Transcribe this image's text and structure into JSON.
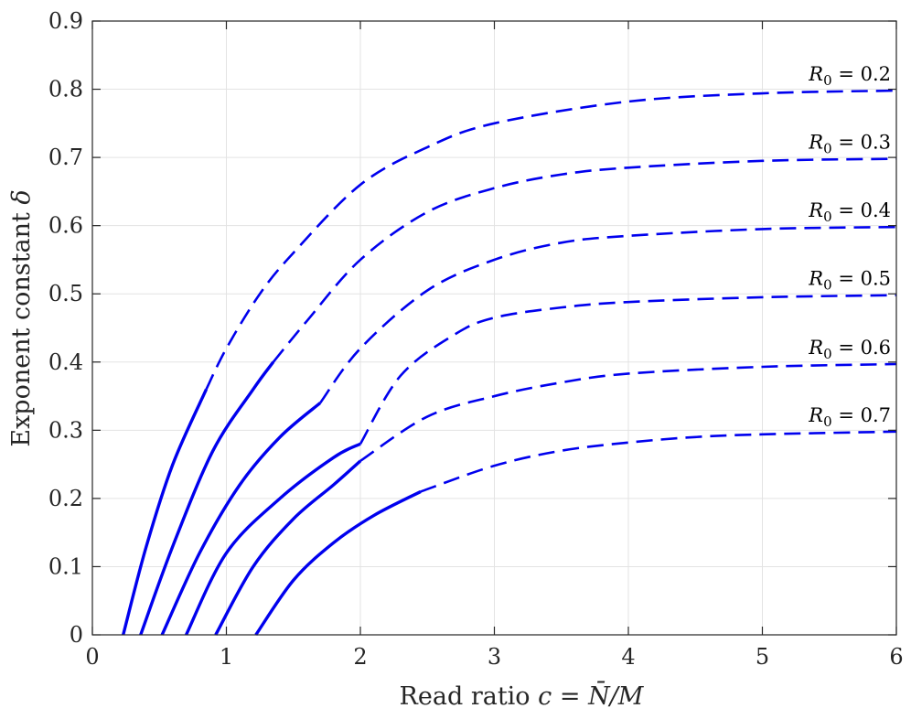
{
  "chart_data": {
    "type": "line",
    "xlabel_prefix": "Read ratio ",
    "xlabel_math": "c = N̄/M",
    "ylabel_prefix": "Exponent constant ",
    "ylabel_math": "δ",
    "xlim": [
      0,
      6
    ],
    "ylim": [
      0,
      0.9
    ],
    "xticks": [
      0,
      1,
      2,
      3,
      4,
      5,
      6
    ],
    "yticks": [
      0,
      0.1,
      0.2,
      0.3,
      0.4,
      0.5,
      0.6,
      0.7,
      0.8,
      0.9
    ],
    "xtick_labels": [
      "0",
      "1",
      "2",
      "3",
      "4",
      "5",
      "6"
    ],
    "ytick_labels": [
      "0",
      "0.1",
      "0.2",
      "0.3",
      "0.4",
      "0.5",
      "0.6",
      "0.7",
      "0.8",
      "0.9"
    ],
    "grid": true,
    "line_color": "#0000ee",
    "series": [
      {
        "name": "R₀ = 0.2",
        "label_value": "0.2",
        "solid": {
          "x": [
            0.23,
            0.4,
            0.6,
            0.85
          ],
          "y": [
            0.0,
            0.128,
            0.25,
            0.36
          ]
        },
        "dashed": {
          "x": [
            0.85,
            1.0,
            1.25,
            1.5,
            2.0,
            2.5,
            3.0,
            4.0,
            5.0,
            6.0
          ],
          "y": [
            0.36,
            0.42,
            0.5,
            0.56,
            0.66,
            0.715,
            0.75,
            0.782,
            0.794,
            0.798
          ]
        }
      },
      {
        "name": "R₀ = 0.3",
        "label_value": "0.3",
        "solid": {
          "x": [
            0.36,
            0.6,
            0.9,
            1.2,
            1.35
          ],
          "y": [
            0.0,
            0.13,
            0.27,
            0.36,
            0.4
          ]
        },
        "dashed": {
          "x": [
            1.35,
            1.6,
            2.0,
            2.5,
            3.0,
            3.5,
            4.0,
            5.0,
            6.0
          ],
          "y": [
            0.4,
            0.46,
            0.55,
            0.62,
            0.655,
            0.675,
            0.685,
            0.695,
            0.698
          ]
        }
      },
      {
        "name": "R₀ = 0.4",
        "label_value": "0.4",
        "solid": {
          "x": [
            0.52,
            0.8,
            1.1,
            1.4,
            1.7
          ],
          "y": [
            0.0,
            0.12,
            0.22,
            0.29,
            0.34
          ]
        },
        "dashed": {
          "x": [
            1.7,
            2.0,
            2.5,
            3.0,
            3.5,
            4.0,
            5.0,
            6.0
          ],
          "y": [
            0.34,
            0.42,
            0.505,
            0.55,
            0.575,
            0.585,
            0.595,
            0.598
          ]
        }
      },
      {
        "name": "R₀ = 0.5",
        "label_value": "0.5",
        "solid": {
          "x": [
            0.7,
            1.0,
            1.4,
            1.8,
            2.0
          ],
          "y": [
            0.0,
            0.12,
            0.2,
            0.26,
            0.28
          ]
        },
        "dashed": {
          "x": [
            2.0,
            2.3,
            2.7,
            3.0,
            3.5,
            4.0,
            5.0,
            6.0
          ],
          "y": [
            0.28,
            0.38,
            0.44,
            0.465,
            0.48,
            0.488,
            0.495,
            0.498
          ]
        }
      },
      {
        "name": "R₀ = 0.6",
        "label_value": "0.6",
        "solid": {
          "x": [
            0.92,
            1.2,
            1.5,
            1.8,
            2.0
          ],
          "y": [
            0.0,
            0.1,
            0.17,
            0.22,
            0.255
          ]
        },
        "dashed": {
          "x": [
            2.0,
            2.5,
            3.0,
            3.5,
            4.0,
            5.0,
            6.0
          ],
          "y": [
            0.255,
            0.32,
            0.35,
            0.37,
            0.383,
            0.393,
            0.397
          ]
        }
      },
      {
        "name": "R₀ = 0.7",
        "label_value": "0.7",
        "solid": {
          "x": [
            1.22,
            1.5,
            1.8,
            2.1,
            2.45
          ],
          "y": [
            0.0,
            0.08,
            0.135,
            0.175,
            0.21
          ]
        },
        "dashed": {
          "x": [
            2.45,
            3.0,
            3.5,
            4.0,
            4.5,
            5.0,
            6.0
          ],
          "y": [
            0.21,
            0.248,
            0.27,
            0.282,
            0.29,
            0.294,
            0.298
          ]
        }
      }
    ]
  }
}
